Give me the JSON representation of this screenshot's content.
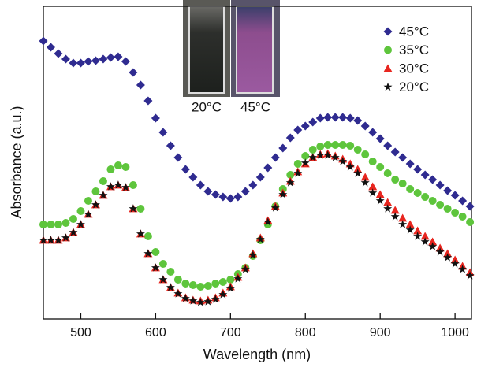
{
  "chart_data": {
    "type": "scatter",
    "x_label": "Wavelength (nm)",
    "y_label": "Absorbance (a.u.)",
    "x": [
      450,
      460,
      470,
      480,
      490,
      500,
      510,
      520,
      530,
      540,
      550,
      560,
      570,
      580,
      590,
      600,
      610,
      620,
      630,
      640,
      650,
      660,
      670,
      680,
      690,
      700,
      710,
      720,
      730,
      740,
      750,
      760,
      770,
      780,
      790,
      800,
      810,
      820,
      830,
      840,
      850,
      860,
      870,
      880,
      890,
      900,
      910,
      920,
      930,
      940,
      950,
      960,
      970,
      980,
      990,
      1000,
      1010,
      1020
    ],
    "xlim": [
      450,
      1022
    ],
    "xticks": [
      500,
      600,
      700,
      800,
      900,
      1000
    ],
    "ylim": [
      0,
      397
    ],
    "legend": "top-right",
    "inset": {
      "labels": [
        "20°C",
        "45°C"
      ]
    },
    "series": [
      {
        "name": "45°C",
        "color": "#2f2b90",
        "marker": "diamond",
        "values": [
          353,
          345,
          337,
          330,
          325,
          325,
          327,
          328,
          330,
          332,
          333,
          327,
          313,
          297,
          277,
          255,
          237,
          220,
          205,
          190,
          180,
          170,
          162,
          158,
          155,
          153,
          155,
          162,
          170,
          180,
          192,
          205,
          217,
          230,
          240,
          245,
          250,
          255,
          256,
          256,
          256,
          255,
          252,
          245,
          237,
          229,
          220,
          212,
          205,
          197,
          190,
          183,
          177,
          170,
          163,
          157,
          150,
          143
        ]
      },
      {
        "name": "35°C",
        "color": "#5ec53c",
        "marker": "circle",
        "values": [
          120,
          120,
          120,
          122,
          127,
          137,
          150,
          162,
          175,
          190,
          195,
          193,
          170,
          140,
          105,
          85,
          70,
          60,
          50,
          45,
          43,
          41,
          42,
          45,
          47,
          50,
          57,
          65,
          80,
          100,
          120,
          143,
          165,
          183,
          197,
          207,
          215,
          219,
          221,
          221,
          221,
          220,
          215,
          209,
          200,
          193,
          185,
          177,
          172,
          165,
          160,
          155,
          150,
          145,
          140,
          135,
          130,
          123
        ]
      },
      {
        "name": "30°C",
        "color": "#e8261f",
        "marker": "triangle",
        "values": [
          100,
          100,
          100,
          103,
          110,
          120,
          133,
          145,
          157,
          168,
          170,
          167,
          140,
          108,
          83,
          65,
          50,
          40,
          33,
          27,
          24,
          23,
          24,
          27,
          33,
          41,
          53,
          65,
          83,
          103,
          125,
          143,
          160,
          175,
          187,
          197,
          205,
          209,
          210,
          207,
          203,
          197,
          190,
          180,
          168,
          158,
          148,
          138,
          128,
          120,
          112,
          105,
          98,
          90,
          83,
          75,
          67,
          59
        ]
      },
      {
        "name": "20°C",
        "color": "#111111",
        "marker": "star",
        "values": [
          100,
          100,
          100,
          103,
          110,
          120,
          133,
          145,
          157,
          168,
          170,
          167,
          140,
          108,
          83,
          65,
          50,
          40,
          32,
          26,
          23,
          21,
          22,
          25,
          31,
          39,
          51,
          63,
          81,
          101,
          123,
          141,
          158,
          173,
          185,
          198,
          205,
          208,
          208,
          205,
          200,
          193,
          185,
          173,
          160,
          150,
          140,
          130,
          120,
          113,
          105,
          98,
          92,
          85,
          78,
          70,
          63,
          55
        ]
      }
    ]
  }
}
